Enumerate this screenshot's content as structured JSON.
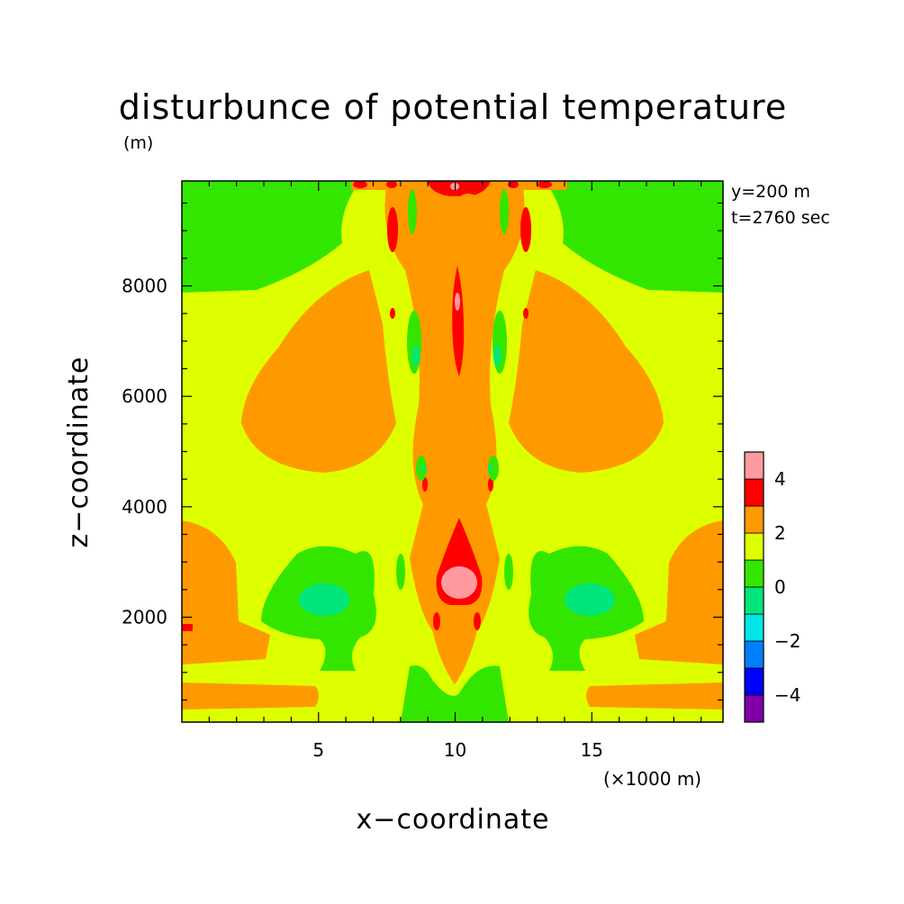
{
  "chart_data": {
    "type": "heatmap",
    "title": "disturbunce of potential temperature",
    "title_unit": "(m)",
    "xlabel": "x−coordinate",
    "ylabel": "z−coordinate",
    "x_unit": "(×1000 m)",
    "xlim": [
      0,
      19.8
    ],
    "ylim": [
      100,
      9900
    ],
    "x_ticks": [
      5,
      10,
      15
    ],
    "x_tick_labels": [
      "5",
      "10",
      "15"
    ],
    "y_ticks": [
      2000,
      4000,
      6000,
      8000
    ],
    "y_tick_labels": [
      "2000",
      "4000",
      "6000",
      "8000"
    ],
    "annotations": [
      "y=200 m",
      "t=2760 sec"
    ],
    "colorbar": {
      "levels": [
        -5,
        -4,
        -3,
        -2,
        -1,
        0,
        1,
        2,
        3,
        4,
        5
      ],
      "colors": [
        "#7f00a8",
        "#0000ff",
        "#0080ff",
        "#00e6e6",
        "#00e67a",
        "#33e600",
        "#ddff00",
        "#ff9900",
        "#ff0000",
        "#ff9aa0"
      ],
      "tick_values": [
        -4,
        -2,
        0,
        2,
        4
      ],
      "tick_labels": [
        "−4",
        "−2",
        "0",
        "2",
        "4"
      ]
    },
    "field_regions": [
      {
        "name": "background",
        "level": 1.5
      },
      {
        "name": "upper-left-cool",
        "level": 0.5
      },
      {
        "name": "upper-right-cool",
        "level": 0.5
      },
      {
        "name": "left-warm-lobe",
        "level": 2.5
      },
      {
        "name": "right-warm-lobe",
        "level": 2.5
      },
      {
        "name": "lower-left-warm-band",
        "level": 2.5
      },
      {
        "name": "lower-right-warm-band",
        "level": 2.5
      },
      {
        "name": "lower-left-cool-blob",
        "level": 0.5
      },
      {
        "name": "lower-right-cool-blob",
        "level": 0.5
      },
      {
        "name": "lower-left-core",
        "level": -0.5
      },
      {
        "name": "lower-right-core",
        "level": -0.5
      },
      {
        "name": "central-column",
        "level": 2.5
      },
      {
        "name": "central-upper-jet",
        "level": 3.5
      },
      {
        "name": "central-thermal",
        "level": 3.5
      },
      {
        "name": "central-thermal-core",
        "level": 4.5
      },
      {
        "name": "top-strip",
        "level": 2.5
      },
      {
        "name": "top-hot-spots",
        "level": 3.5
      },
      {
        "name": "bottom-cool-base",
        "level": 0.5
      }
    ]
  }
}
